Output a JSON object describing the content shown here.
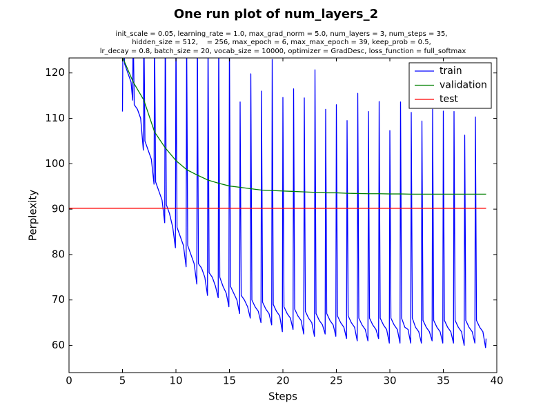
{
  "chart_data": {
    "type": "line",
    "title": "One run plot of num_layers_2",
    "subtitle": [
      "init_scale = 0.05, learning_rate = 1.0, max_grad_norm = 5.0, num_layers = 3, num_steps = 35,",
      "hidden_size = 512,    = 256, max_epoch = 6, max_max_epoch = 39, keep_prob = 0.5,",
      "lr_decay = 0.8, batch_size = 20, vocab_size = 10000, optimizer = GradDesc, loss_function = full_softmax"
    ],
    "x_label": "Steps",
    "y_label": "Perplexity",
    "xlim": [
      0,
      40
    ],
    "ylim": [
      54,
      123.3
    ],
    "xticks": [
      0,
      5,
      10,
      15,
      20,
      25,
      30,
      35,
      40
    ],
    "yticks": [
      60,
      70,
      80,
      90,
      100,
      110,
      120
    ],
    "legend": "upper right",
    "series": [
      {
        "name": "train",
        "color": "#0000ff",
        "x": [
          5,
          5.05,
          5.2,
          5.5,
          5.8,
          5.95,
          6,
          6.1,
          6.4,
          6.7,
          6.95,
          7,
          7.1,
          7.4,
          7.7,
          7.95,
          8,
          8.1,
          8.4,
          8.7,
          8.95,
          9,
          9.1,
          9.4,
          9.7,
          9.95,
          10,
          10.1,
          10.4,
          10.7,
          10.95,
          11,
          11.1,
          11.4,
          11.7,
          11.95,
          12,
          12.1,
          12.4,
          12.7,
          12.95,
          13,
          13.1,
          13.4,
          13.7,
          13.95,
          14,
          14.1,
          14.4,
          14.7,
          14.95,
          15,
          15.1,
          15.4,
          15.7,
          15.95,
          16,
          16.1,
          16.4,
          16.7,
          16.95,
          17,
          17.1,
          17.4,
          17.7,
          17.95,
          18,
          18.1,
          18.4,
          18.7,
          18.95,
          19,
          19.1,
          19.4,
          19.7,
          19.95,
          20,
          20.1,
          20.4,
          20.7,
          20.95,
          21,
          21.1,
          21.4,
          21.7,
          21.95,
          22,
          22.1,
          22.4,
          22.7,
          22.95,
          23,
          23.1,
          23.4,
          23.7,
          23.95,
          24,
          24.1,
          24.4,
          24.7,
          24.95,
          25,
          25.1,
          25.4,
          25.7,
          25.95,
          26,
          26.1,
          26.4,
          26.7,
          26.95,
          27,
          27.1,
          27.4,
          27.7,
          27.95,
          28,
          28.1,
          28.4,
          28.7,
          28.95,
          29,
          29.1,
          29.4,
          29.7,
          29.95,
          30,
          30.1,
          30.4,
          30.7,
          30.95,
          31,
          31.1,
          31.4,
          31.7,
          31.95,
          32,
          32.1,
          32.4,
          32.7,
          32.95,
          33,
          33.1,
          33.4,
          33.7,
          33.95,
          34,
          34.1,
          34.4,
          34.7,
          34.95,
          35,
          35.1,
          35.4,
          35.7,
          35.95,
          36,
          36.1,
          36.4,
          36.7,
          36.95,
          37,
          37.1,
          37.4,
          37.7,
          37.95,
          38,
          38.1,
          38.4,
          38.7,
          38.95,
          39
        ],
        "values": [
          111.5,
          130,
          122,
          120,
          118,
          114,
          130,
          113,
          112,
          110,
          103,
          131,
          105,
          103,
          101,
          95.5,
          129,
          96,
          94,
          92,
          87,
          132,
          91,
          89,
          86,
          81.5,
          130,
          86,
          84,
          82,
          77.3,
          128,
          82,
          80,
          78,
          73.5,
          131,
          78,
          77,
          75,
          71,
          129,
          76,
          75,
          73,
          70.5,
          130,
          75,
          73,
          71.5,
          68.5,
          128,
          73,
          71.5,
          70,
          67,
          113.6,
          71,
          70,
          68.5,
          66,
          119.8,
          70,
          68.5,
          67.5,
          65,
          116,
          69.5,
          68,
          67,
          64.5,
          123,
          69,
          67.5,
          66.5,
          63,
          114.6,
          68.5,
          67,
          66,
          63.5,
          116.5,
          68,
          66.5,
          65.5,
          62.5,
          114.5,
          67.5,
          66,
          65,
          62,
          120.7,
          67,
          65.5,
          64.5,
          62.5,
          112,
          67,
          65.5,
          64.5,
          62,
          113,
          66.5,
          65,
          64,
          61.5,
          109.5,
          66.5,
          65,
          64,
          61,
          115.5,
          66,
          64.5,
          63.5,
          61,
          111.5,
          66,
          64.5,
          63.5,
          61.5,
          113.7,
          66,
          64.5,
          63.5,
          60.5,
          107.3,
          66,
          64.5,
          63.5,
          60.5,
          113.6,
          66,
          64,
          63.5,
          60.5,
          111.3,
          66,
          64,
          63,
          60.5,
          109.4,
          65.5,
          64,
          63,
          61,
          112,
          65.5,
          64,
          63,
          60.5,
          111.6,
          65.5,
          64,
          63,
          60.5,
          111.5,
          65.5,
          64,
          63,
          60,
          106.3,
          65.5,
          64,
          63,
          60.5,
          110.3,
          65.5,
          64,
          63,
          59.5,
          61.5
        ]
      },
      {
        "name": "validation",
        "color": "#008000",
        "x": [
          5,
          6,
          7,
          8,
          9,
          10,
          11,
          12,
          13,
          14,
          15,
          16,
          17,
          18,
          19,
          20,
          21,
          22,
          23,
          24,
          25,
          26,
          27,
          28,
          29,
          30,
          31,
          32,
          33,
          34,
          35,
          36,
          37,
          38,
          39
        ],
        "values": [
          123.5,
          118,
          114,
          107,
          103.5,
          100.7,
          98.7,
          97.5,
          96.4,
          95.7,
          95.1,
          94.8,
          94.5,
          94.2,
          94.1,
          94.0,
          93.9,
          93.8,
          93.7,
          93.6,
          93.6,
          93.5,
          93.45,
          93.4,
          93.4,
          93.35,
          93.35,
          93.3,
          93.3,
          93.3,
          93.3,
          93.3,
          93.3,
          93.3,
          93.3
        ]
      },
      {
        "name": "test",
        "color": "#ff0000",
        "x": [
          0,
          39
        ],
        "values": [
          90.2,
          90.2
        ]
      }
    ]
  }
}
